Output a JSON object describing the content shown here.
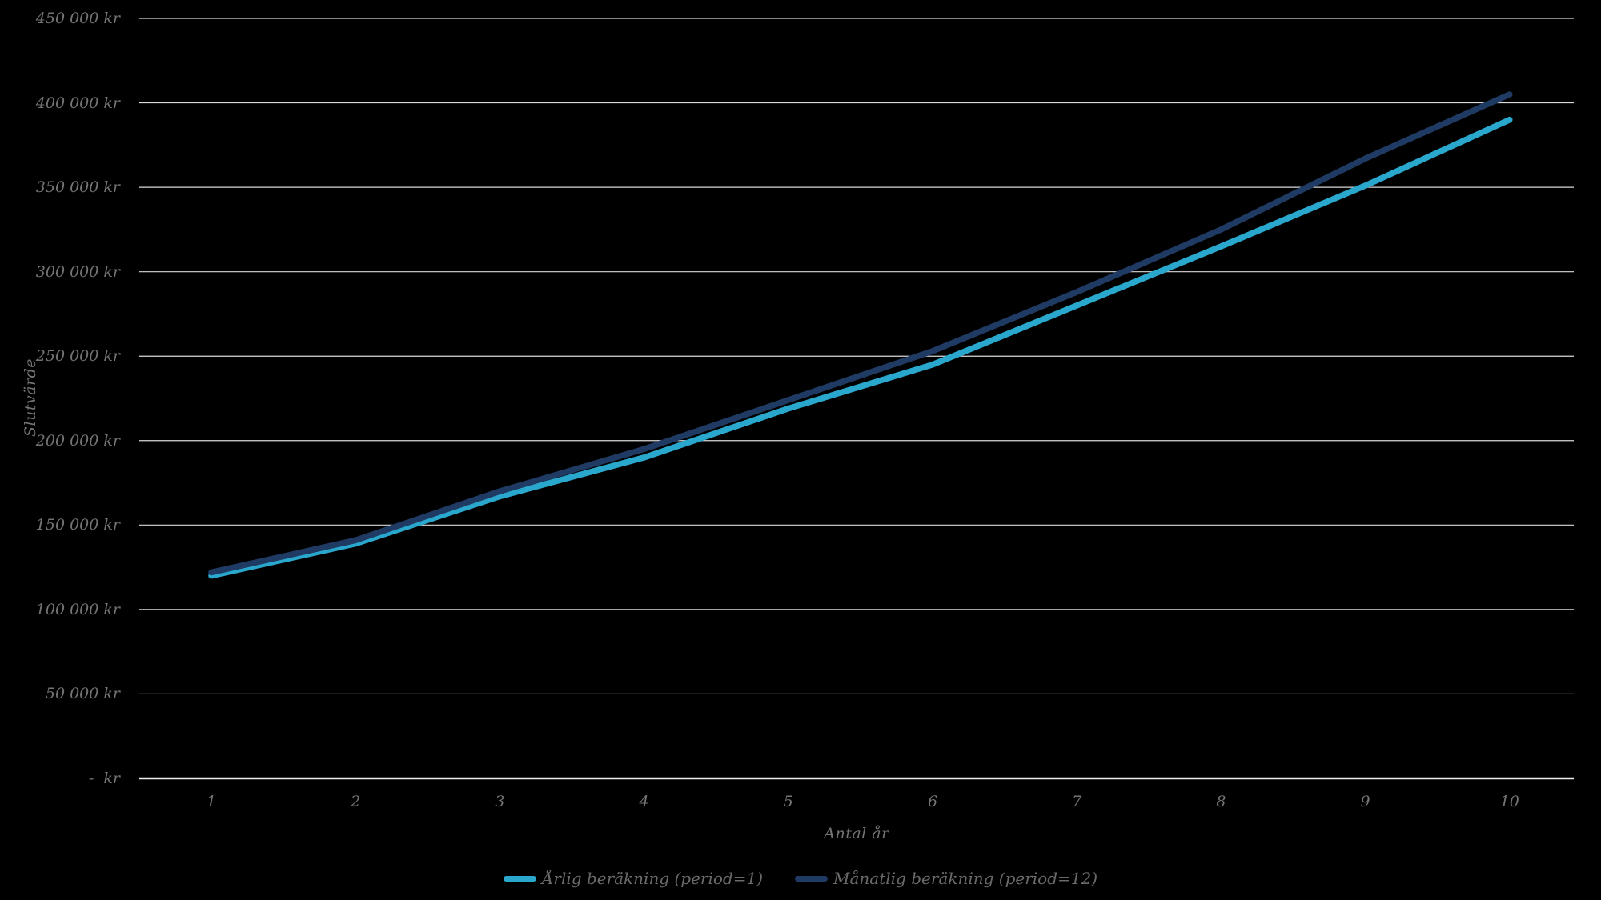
{
  "chart_data": {
    "type": "line",
    "title": "",
    "xlabel": "Antal år",
    "ylabel": "Slutvärde",
    "x": [
      1,
      2,
      3,
      4,
      5,
      6,
      7,
      8,
      9,
      10
    ],
    "x_tick_labels": [
      "1",
      "2",
      "3",
      "4",
      "5",
      "6",
      "7",
      "8",
      "9",
      "10"
    ],
    "series": [
      {
        "name": "Årlig beräkning (period=1)",
        "color": "#2AA7CC",
        "values": [
          120000,
          139000,
          167000,
          190000,
          219000,
          245000,
          280000,
          315000,
          351000,
          390000
        ]
      },
      {
        "name": "Månatlig beräkning (period=12)",
        "color": "#203B63",
        "values": [
          122000,
          141000,
          170000,
          195000,
          224000,
          253000,
          288000,
          325000,
          367000,
          405000
        ]
      }
    ],
    "ylim": [
      0,
      450000
    ],
    "y_tick_step": 50000,
    "y_tick_labels": [
      "-  kr",
      "50 000 kr",
      "100 000 kr",
      "150 000 kr",
      "200 000 kr",
      "250 000 kr",
      "300 000 kr",
      "350 000 kr",
      "400 000 kr",
      "450 000 kr"
    ],
    "grid": "horizontal",
    "legend_position": "bottom",
    "background_color": "#000000",
    "gridline_color": "#D9D9D9",
    "axis_line_color": "#EDEDED",
    "tick_label_color": "#747474",
    "legend_label_color": "#6A6A6A",
    "line_width": 7.5
  }
}
